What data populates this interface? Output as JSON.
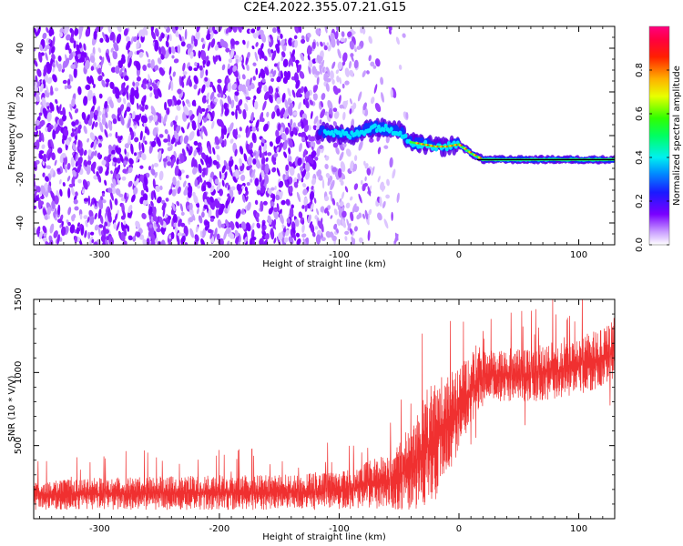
{
  "title": "C2E4.2022.355.07.21.G15",
  "colors": {
    "snr_line": "#f03030",
    "spectrogram_purple": "#7a00ff",
    "fit_line": "#000000"
  },
  "chart_data": [
    {
      "type": "heatmap",
      "xlabel": "Height of straight line (km)",
      "ylabel": "Frequency (Hz)",
      "xlim": [
        -355,
        130
      ],
      "ylim": [
        -50,
        50
      ],
      "xticks": [
        -300,
        -200,
        -100,
        0,
        100
      ],
      "xtick_labels": [
        "-300",
        "-200",
        "-100",
        "0",
        "100"
      ],
      "yticks": [
        -40,
        -20,
        0,
        20,
        40
      ],
      "ytick_labels": [
        "-40",
        "-20",
        "0",
        "20",
        "40"
      ],
      "colorbar": {
        "label": "Normalized spectral amplitude",
        "range": [
          0,
          1
        ],
        "ticks": [
          0.0,
          0.2,
          0.4,
          0.6,
          0.8
        ],
        "tick_labels": [
          "0.0",
          "0.2",
          "0.4",
          "0.6",
          "0.8"
        ],
        "colormap": "white-purple-blue-cyan-green-yellow-red-magenta"
      },
      "signal_track": {
        "x": [
          -115,
          -90,
          -70,
          -50,
          -40,
          -30,
          -20,
          -10,
          0,
          10,
          20,
          40,
          60,
          80,
          100,
          120,
          130
        ],
        "y": [
          2,
          0,
          4,
          2,
          -3,
          -4,
          -5,
          -5,
          -4,
          -8,
          -11,
          -11,
          -11,
          -11,
          -11,
          -11,
          -11
        ]
      },
      "fit_line": {
        "x": [
          15,
          130
        ],
        "y": [
          -11,
          -11
        ]
      },
      "noise_region_x": [
        -355,
        -50
      ]
    },
    {
      "type": "line",
      "xlabel": "Height of straight line (km)",
      "ylabel": "SNR (10 * V/V)",
      "xlim": [
        -355,
        130
      ],
      "ylim": [
        0,
        1500
      ],
      "xticks": [
        -300,
        -200,
        -100,
        0,
        100
      ],
      "xtick_labels": [
        "-300",
        "-200",
        "-100",
        "0",
        "100"
      ],
      "yticks": [
        500,
        1000,
        1500
      ],
      "ytick_labels": [
        "500",
        "1000",
        "1500"
      ],
      "series": [
        {
          "color": "#f03030",
          "envelope_x": [
            -355,
            -300,
            -200,
            -150,
            -100,
            -80,
            -60,
            -50,
            -40,
            -30,
            -20,
            -10,
            0,
            10,
            20,
            40,
            60,
            80,
            100,
            120,
            130
          ],
          "envelope_lo": [
            60,
            60,
            60,
            60,
            60,
            70,
            70,
            60,
            60,
            80,
            120,
            300,
            450,
            650,
            800,
            800,
            800,
            820,
            850,
            900,
            950
          ],
          "envelope_hi": [
            260,
            280,
            300,
            300,
            320,
            380,
            450,
            550,
            650,
            850,
            950,
            1000,
            1050,
            1120,
            1150,
            1150,
            1180,
            1200,
            1250,
            1300,
            1380
          ]
        }
      ]
    }
  ]
}
